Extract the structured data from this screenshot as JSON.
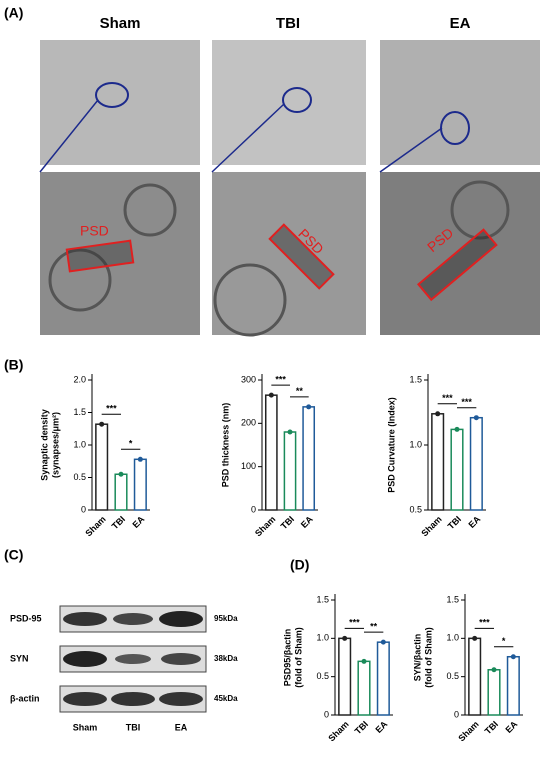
{
  "panels": {
    "a": "(A)",
    "b": "(B)",
    "c": "(C)",
    "d": "(D)"
  },
  "em": {
    "groups": [
      "Sham",
      "TBI",
      "EA"
    ],
    "psd": "PSD"
  },
  "blot": {
    "rows": [
      "PSD-95",
      "SYN",
      "β-actin"
    ],
    "sizes": [
      "95kDa",
      "38kDa",
      "45kDa"
    ],
    "lanes": [
      "Sham",
      "TBI",
      "EA"
    ]
  },
  "chart_data": [
    {
      "type": "bar",
      "ylabel": [
        "Synaptic density",
        "(synapses/μm²)"
      ],
      "categories": [
        "Sham",
        "TBI",
        "EA"
      ],
      "values": [
        1.32,
        0.55,
        0.78
      ],
      "colors": [
        "#222222",
        "#1a8a5a",
        "#1f5a99"
      ],
      "ylim": [
        0,
        2
      ],
      "yticks": [
        0,
        0.5,
        {
          "value": 1,
          "label": "1.0"
        },
        1.5,
        {
          "value": 2,
          "label": "2.0"
        }
      ],
      "annotations": [
        "***",
        "*"
      ]
    },
    {
      "type": "bar",
      "ylabel": [
        "PSD thickness (nm)"
      ],
      "categories": [
        "Sham",
        "TBI",
        "EA"
      ],
      "values": [
        265,
        180,
        238
      ],
      "colors": [
        "#222222",
        "#1a8a5a",
        "#1f5a99"
      ],
      "ylim": [
        0,
        300
      ],
      "yticks": [
        0,
        100,
        200,
        300
      ],
      "annotations": [
        "***",
        "**"
      ]
    },
    {
      "type": "bar",
      "ylabel": [
        "PSD Curvature (Index)"
      ],
      "categories": [
        "Sham",
        "TBI",
        "EA"
      ],
      "values": [
        1.24,
        1.12,
        1.21
      ],
      "colors": [
        "#222222",
        "#1a8a5a",
        "#1f5a99"
      ],
      "ylim": [
        0.5,
        1.5
      ],
      "yticks": [
        0.5,
        {
          "value": 1,
          "label": "1.0"
        },
        1.5
      ],
      "annotations": [
        "***",
        "***"
      ]
    },
    {
      "type": "bar",
      "ylabel": [
        "PSD95/βactin",
        "(fold of Sham)"
      ],
      "categories": [
        "Sham",
        "TBI",
        "EA"
      ],
      "values": [
        1.0,
        0.7,
        0.95
      ],
      "colors": [
        "#222222",
        "#1a8a5a",
        "#1f5a99"
      ],
      "ylim": [
        0,
        1.5
      ],
      "yticks": [
        0,
        0.5,
        {
          "value": 1,
          "label": "1.0"
        },
        1.5
      ],
      "annotations": [
        "***",
        "**"
      ]
    },
    {
      "type": "bar",
      "ylabel": [
        "SYN/βactin",
        "(fold of Sham)"
      ],
      "categories": [
        "Sham",
        "TBI",
        "EA"
      ],
      "values": [
        1.0,
        0.59,
        0.76
      ],
      "colors": [
        "#222222",
        "#1a8a5a",
        "#1f5a99"
      ],
      "ylim": [
        0,
        1.5
      ],
      "yticks": [
        0,
        0.5,
        {
          "value": 1,
          "label": "1.0"
        },
        1.5
      ],
      "annotations": [
        "***",
        "*"
      ]
    }
  ]
}
